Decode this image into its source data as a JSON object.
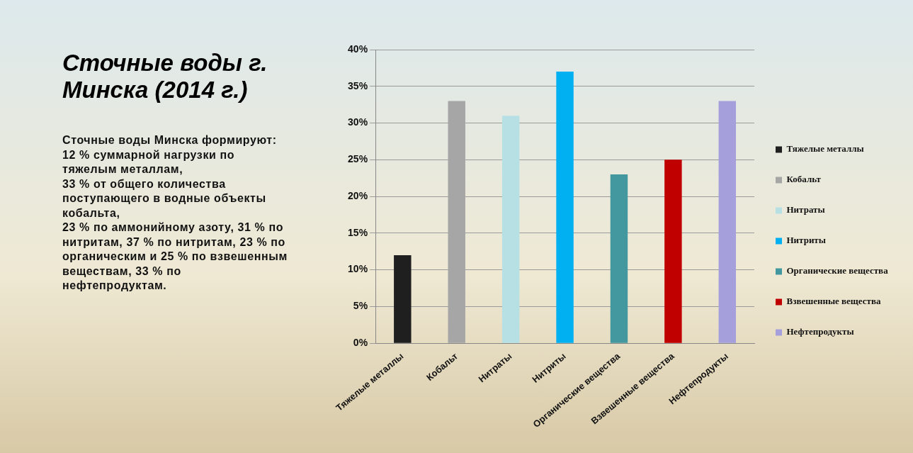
{
  "chart_data": {
    "type": "bar",
    "title": "Сточные воды г. Минска (2014 г.)",
    "annotations": [
      "Сточные воды Минска формируют:  12  % суммарной нагрузки по тяжелым металлам,\n33 % от общего количества поступающего в водные объекты кобальта,\n23 %  по аммонийному азоту,  31 % по нитритам, 37 % по нитритам, 23 % по органическим и 25 % по взвешенным веществам,  33 % по нефтепродуктам."
    ],
    "categories": [
      "Тяжелые металлы",
      "Кобальт",
      "Нитраты",
      "Нитриты",
      "Органические вещества",
      "Взвешенные вещества",
      "Нефтепродукты"
    ],
    "series": [
      {
        "name": "Тяжелые металлы",
        "color": "#1f1f1f",
        "values": [
          12,
          null,
          null,
          null,
          null,
          null,
          null
        ]
      },
      {
        "name": "Кобальт",
        "color": "#a6a6a6",
        "values": [
          null,
          33,
          null,
          null,
          null,
          null,
          null
        ]
      },
      {
        "name": "Нитраты",
        "color": "#b7e0e4",
        "values": [
          null,
          null,
          31,
          null,
          null,
          null,
          null
        ]
      },
      {
        "name": "Нитриты",
        "color": "#00b0f0",
        "values": [
          null,
          null,
          null,
          37,
          null,
          null,
          null
        ]
      },
      {
        "name": "Органические вещества",
        "color": "#43989f",
        "values": [
          null,
          null,
          null,
          null,
          23,
          null,
          null
        ]
      },
      {
        "name": "Взвешенные вещества",
        "color": "#c00000",
        "values": [
          null,
          null,
          null,
          null,
          null,
          25,
          null
        ]
      },
      {
        "name": "Нефтепродукты",
        "color": "#a5a0dc",
        "values": [
          null,
          null,
          null,
          null,
          null,
          null,
          33
        ]
      }
    ],
    "ylim": [
      0,
      40
    ],
    "yticks": [
      {
        "value": 0,
        "label": "0%"
      },
      {
        "value": 5,
        "label": "5%"
      },
      {
        "value": 10,
        "label": "10%"
      },
      {
        "value": 15,
        "label": "15%"
      },
      {
        "value": 20,
        "label": "20%"
      },
      {
        "value": 25,
        "label": "25%"
      },
      {
        "value": 30,
        "label": "30%"
      },
      {
        "value": 35,
        "label": "35%"
      },
      {
        "value": 40,
        "label": "40%"
      }
    ],
    "grid": "y",
    "legend": "right"
  }
}
